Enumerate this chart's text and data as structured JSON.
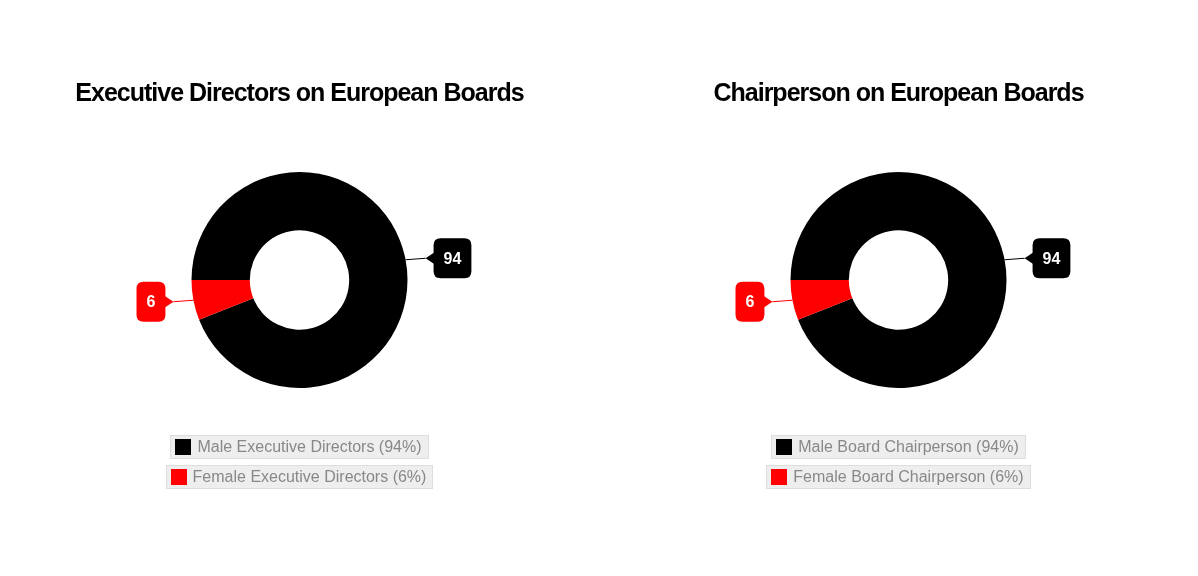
{
  "chart_data": [
    {
      "type": "donut",
      "title": "Executive Directors on European Boards",
      "categories": [
        "Male Executive Directors (94%)",
        "Female Executive Directors (6%)"
      ],
      "values": [
        94,
        6
      ],
      "colors": [
        "#000000",
        "#ff0000"
      ],
      "data_labels": true,
      "legend": "bottom"
    },
    {
      "type": "donut",
      "title": "Chairperson on European Boards",
      "categories": [
        "Male Board Chairperson (94%)",
        "Female Board Chairperson (6%)"
      ],
      "values": [
        94,
        6
      ],
      "colors": [
        "#000000",
        "#ff0000"
      ],
      "data_labels": true,
      "legend": "bottom"
    }
  ]
}
